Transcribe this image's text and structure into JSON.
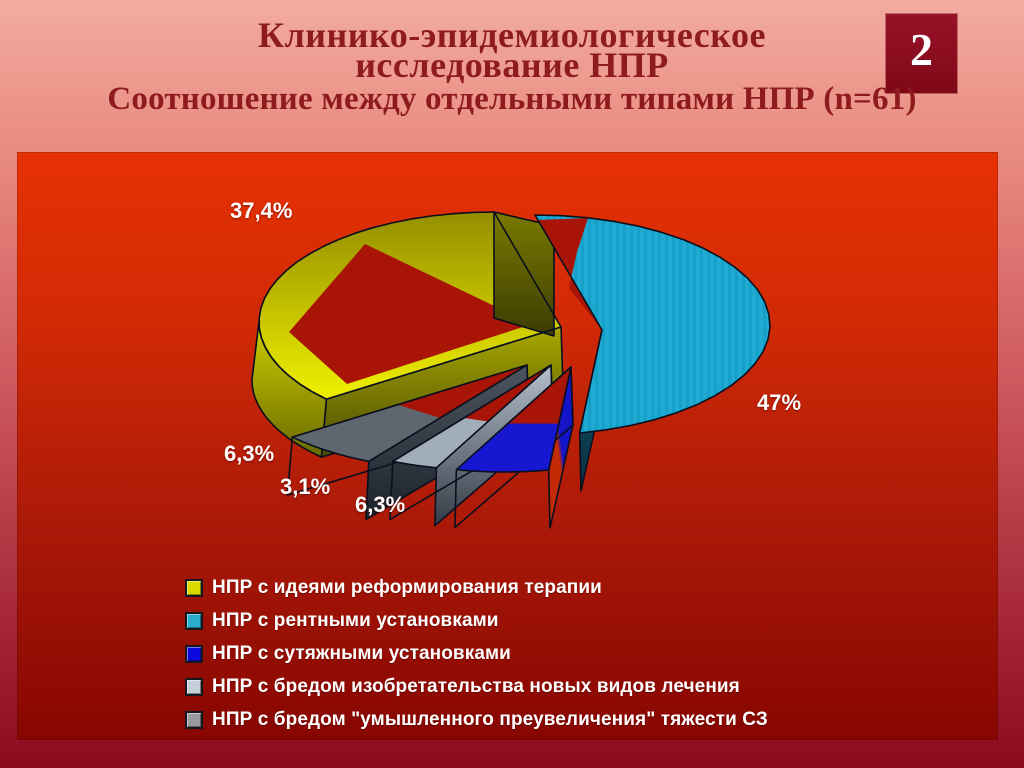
{
  "slide": {
    "number": "2"
  },
  "title": {
    "line1": "Клинико-эпидемиологическое",
    "line2": "исследование НПР",
    "subtitle": "Соотношение между отдельными типами НПР (n=61)"
  },
  "chart_data": {
    "type": "pie",
    "style": "3d-exploded",
    "title": "Соотношение между отдельными типами НПР",
    "sample_size_label": "n=61",
    "rotation_start_deg": 225.5,
    "direction": "clockwise",
    "legend_position": "bottom-left",
    "slices": [
      {
        "label": "НПР с идеями реформирования терапии",
        "value": 37.4,
        "display": "37,4%",
        "color": "#D9D900",
        "legend_color": "#D9D900"
      },
      {
        "label": "НПР с рентными установками",
        "value": 47.0,
        "display": "47%",
        "color": "#1FA9D1",
        "legend_color": "#2BAECE"
      },
      {
        "label": "НПР с сутяжными установками",
        "value": 6.3,
        "display": "6,3%",
        "color": "#1717D2",
        "legend_color": "#0A0AE0"
      },
      {
        "label": "НПР с бредом изобретательства новых видов лечения",
        "value": 3.1,
        "display": "3,1%",
        "color": "#A2ADBA",
        "legend_color": "#C6D0DA"
      },
      {
        "label": "НПР с бредом \"умышленного преувеличения\" тяжести СЗ",
        "value": 6.3,
        "display": "6,3%",
        "color": "#5A626E",
        "legend_color": "#9A9A9E"
      }
    ],
    "colors": {
      "panel_top": "#E63103",
      "panel_bottom": "#870601",
      "outline": "#0A0F1E",
      "label_text": "#FFFFFF",
      "title_text": "#8E1B1E"
    }
  }
}
